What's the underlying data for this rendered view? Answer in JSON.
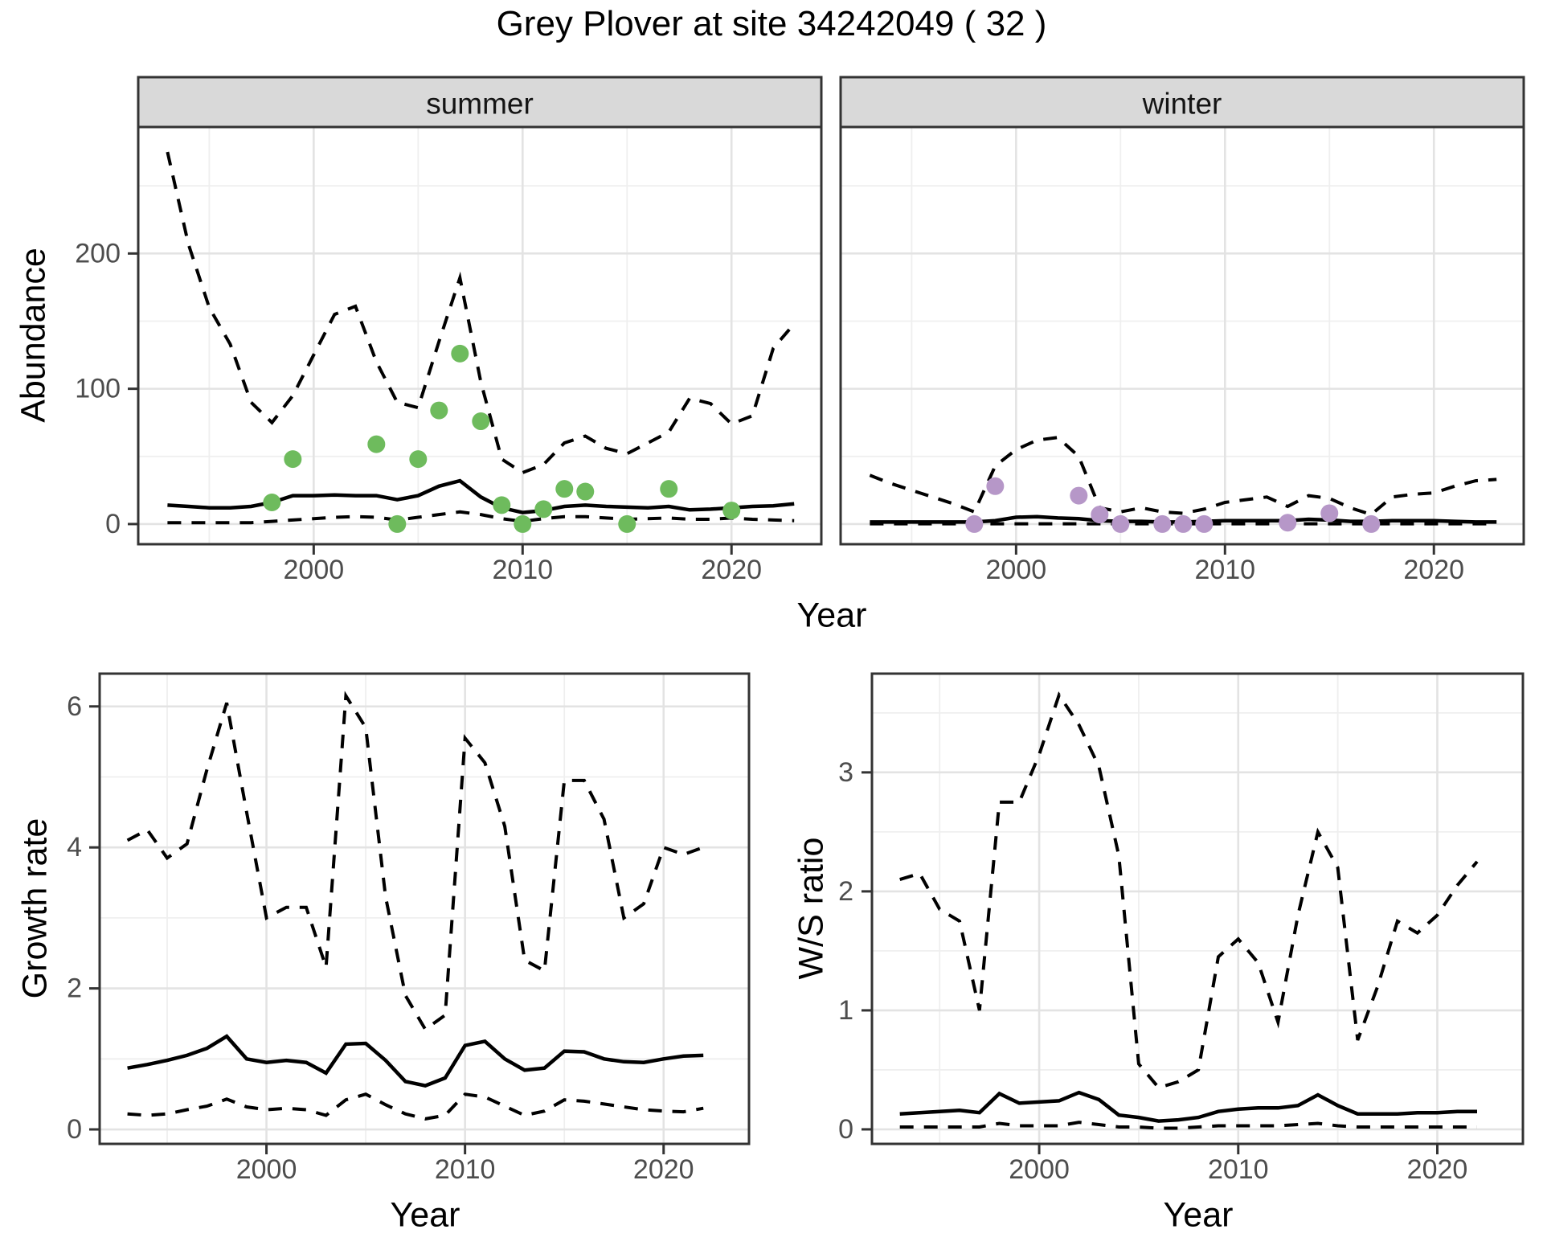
{
  "title": "Grey Plover at site 34242049 ( 32 )",
  "colors": {
    "summer_points": "#6EBB5D",
    "winter_points": "#B697C8",
    "line": "#000000",
    "strip_bg": "#D9D9D9",
    "panel_border": "#333333",
    "grid_major": "#E3E3E3",
    "grid_minor": "#EFEFEF",
    "tick_text": "#4D4D4D"
  },
  "axis_shared": {
    "x_title_top": "Year"
  },
  "chart_data": [
    {
      "type": "line",
      "facet": "summer",
      "xlabel": "Year",
      "ylabel": "Abundance",
      "x_ticks": [
        2000,
        2010,
        2020
      ],
      "x_minor": [
        1995,
        2005,
        2015
      ],
      "y_ticks": [
        0,
        100,
        200
      ],
      "y_minor": [
        50,
        150,
        250
      ],
      "xlim": [
        1991.6,
        2024.3
      ],
      "ylim": [
        -14.9,
        293.5
      ],
      "x": [
        1993,
        1994,
        1995,
        1996,
        1997,
        1998,
        1999,
        2000,
        2001,
        2002,
        2003,
        2004,
        2005,
        2006,
        2007,
        2008,
        2009,
        2010,
        2011,
        2012,
        2013,
        2014,
        2015,
        2016,
        2017,
        2018,
        2019,
        2020,
        2021,
        2022,
        2023
      ],
      "series": [
        {
          "name": "median",
          "style": "solid",
          "values": [
            14,
            13,
            12,
            12,
            13,
            16,
            21,
            21,
            21.5,
            21,
            21,
            18,
            21,
            28,
            32,
            20,
            12,
            8.5,
            10,
            13,
            14,
            13,
            12.5,
            12,
            13,
            10.5,
            11,
            12,
            13,
            13.5,
            15
          ]
        },
        {
          "name": "upper_ci",
          "style": "dashed",
          "values": [
            275,
            207,
            160,
            133,
            90,
            75,
            95,
            125,
            155,
            161,
            120,
            90,
            86,
            135,
            182,
            105,
            48,
            38,
            44,
            60,
            65,
            56,
            52,
            60,
            68,
            93,
            89,
            74,
            80,
            130,
            148
          ]
        },
        {
          "name": "lower_ci",
          "style": "dashed",
          "values": [
            1,
            1,
            1,
            1,
            1,
            2,
            3,
            4,
            5,
            5.5,
            5,
            3,
            5,
            7,
            9,
            7,
            4,
            2,
            4,
            5.5,
            5.5,
            4.5,
            3.5,
            4,
            4.5,
            3.5,
            3.5,
            4.5,
            3.5,
            3,
            2.5
          ]
        }
      ],
      "points": {
        "name": "observed_summer_counts",
        "color_key": "summer_points",
        "data": [
          [
            1998,
            16
          ],
          [
            1999,
            48
          ],
          [
            2003,
            59
          ],
          [
            2004,
            0
          ],
          [
            2005,
            48
          ],
          [
            2006,
            84
          ],
          [
            2007,
            126
          ],
          [
            2008,
            76
          ],
          [
            2009,
            14
          ],
          [
            2010,
            0
          ],
          [
            2011,
            11
          ],
          [
            2012,
            26
          ],
          [
            2013,
            24
          ],
          [
            2015,
            0
          ],
          [
            2017,
            26
          ],
          [
            2020,
            10
          ]
        ]
      }
    },
    {
      "type": "line",
      "facet": "winter",
      "xlabel": "Year",
      "ylabel": "Abundance",
      "x_ticks": [
        2000,
        2010,
        2020
      ],
      "x_minor": [
        1995,
        2005,
        2015
      ],
      "y_ticks": [
        0,
        100,
        200
      ],
      "y_minor": [
        50,
        150,
        250
      ],
      "xlim": [
        1991.6,
        2024.3
      ],
      "ylim": [
        -14.9,
        293.5
      ],
      "x": [
        1993,
        1994,
        1995,
        1996,
        1997,
        1998,
        1999,
        2000,
        2001,
        2002,
        2003,
        2004,
        2005,
        2006,
        2007,
        2008,
        2009,
        2010,
        2011,
        2012,
        2013,
        2014,
        2015,
        2016,
        2017,
        2018,
        2019,
        2020,
        2021,
        2022,
        2023
      ],
      "series": [
        {
          "name": "median",
          "style": "solid",
          "values": [
            1.5,
            1.5,
            1.5,
            1.5,
            1.5,
            1.5,
            2.5,
            5,
            5.5,
            4.5,
            4,
            2.5,
            2,
            2,
            1.5,
            1.5,
            2,
            2.5,
            2.5,
            2.5,
            2.5,
            3.5,
            3,
            2,
            2,
            2.5,
            2.5,
            2.5,
            2,
            1.5,
            1.5
          ]
        },
        {
          "name": "upper_ci",
          "style": "dashed",
          "values": [
            36,
            30,
            25,
            20,
            15,
            9,
            43,
            55,
            62,
            64,
            50,
            12,
            9,
            12,
            9,
            8,
            11,
            16,
            18,
            20,
            13,
            21,
            19,
            12,
            7,
            20,
            22,
            23,
            28,
            32,
            33
          ]
        },
        {
          "name": "lower_ci",
          "style": "dashed",
          "values": [
            0.2,
            0.2,
            0.2,
            0.2,
            0.2,
            0.2,
            0.2,
            0.2,
            0.2,
            0.2,
            0.2,
            0.2,
            0.2,
            0.2,
            0.2,
            0.2,
            0.2,
            0.2,
            0.2,
            0.2,
            0.2,
            0.2,
            0.2,
            0.2,
            0.2,
            0.2,
            0.2,
            0.2,
            0.2,
            0.2,
            0.2
          ]
        }
      ],
      "points": {
        "name": "observed_winter_counts",
        "color_key": "winter_points",
        "data": [
          [
            1998,
            0
          ],
          [
            1999,
            28
          ],
          [
            2003,
            21
          ],
          [
            2004,
            7
          ],
          [
            2005,
            0
          ],
          [
            2007,
            0
          ],
          [
            2008,
            0
          ],
          [
            2009,
            0
          ],
          [
            2013,
            1
          ],
          [
            2015,
            8
          ],
          [
            2017,
            0
          ]
        ]
      }
    },
    {
      "type": "line",
      "facet": null,
      "xlabel": "Year",
      "ylabel": "Growth rate",
      "x_ticks": [
        2000,
        2010,
        2020
      ],
      "x_minor": [
        1995,
        2005,
        2015
      ],
      "y_ticks": [
        0,
        2,
        4,
        6
      ],
      "y_minor": [
        1,
        3,
        5
      ],
      "xlim": [
        1991.6,
        2024.3
      ],
      "ylim": [
        -0.205,
        6.465
      ],
      "x": [
        1993,
        1994,
        1995,
        1996,
        1997,
        1998,
        1999,
        2000,
        2001,
        2002,
        2003,
        2004,
        2005,
        2006,
        2007,
        2008,
        2009,
        2010,
        2011,
        2012,
        2013,
        2014,
        2015,
        2016,
        2017,
        2018,
        2019,
        2020,
        2021,
        2022
      ],
      "series": [
        {
          "name": "median",
          "style": "solid",
          "values": [
            0.87,
            0.92,
            0.98,
            1.05,
            1.15,
            1.32,
            1.0,
            0.95,
            0.98,
            0.95,
            0.8,
            1.21,
            1.22,
            0.98,
            0.68,
            0.62,
            0.73,
            1.19,
            1.25,
            1.0,
            0.84,
            0.87,
            1.11,
            1.1,
            1.0,
            0.96,
            0.95,
            1.0,
            1.04,
            1.05
          ]
        },
        {
          "name": "upper_ci",
          "style": "dashed",
          "values": [
            4.1,
            4.25,
            3.85,
            4.05,
            5.1,
            6.05,
            4.5,
            3.0,
            3.15,
            3.15,
            2.3,
            6.15,
            5.7,
            3.3,
            1.9,
            1.42,
            1.62,
            5.55,
            5.2,
            4.3,
            2.4,
            2.25,
            4.95,
            4.95,
            4.4,
            3.0,
            3.2,
            4.0,
            3.9,
            4.0
          ]
        },
        {
          "name": "lower_ci",
          "style": "dashed",
          "values": [
            0.22,
            0.2,
            0.22,
            0.28,
            0.33,
            0.43,
            0.32,
            0.28,
            0.3,
            0.28,
            0.2,
            0.42,
            0.5,
            0.35,
            0.22,
            0.15,
            0.2,
            0.5,
            0.46,
            0.33,
            0.2,
            0.26,
            0.42,
            0.4,
            0.36,
            0.32,
            0.28,
            0.26,
            0.25,
            0.3
          ]
        }
      ],
      "points": null
    },
    {
      "type": "line",
      "facet": null,
      "xlabel": "Year",
      "ylabel": "W/S ratio",
      "x_ticks": [
        2000,
        2010,
        2020
      ],
      "x_minor": [
        1995,
        2005,
        2015
      ],
      "y_ticks": [
        0,
        1,
        2,
        3
      ],
      "y_minor": [
        0.5,
        1.5,
        2.5,
        3.5
      ],
      "xlim": [
        1991.6,
        2024.3
      ],
      "ylim": [
        -0.122,
        3.83
      ],
      "x": [
        1993,
        1994,
        1995,
        1996,
        1997,
        1998,
        1999,
        2000,
        2001,
        2002,
        2003,
        2004,
        2005,
        2006,
        2007,
        2008,
        2009,
        2010,
        2011,
        2012,
        2013,
        2014,
        2015,
        2016,
        2017,
        2018,
        2019,
        2020,
        2021,
        2022
      ],
      "series": [
        {
          "name": "median",
          "style": "solid",
          "values": [
            0.13,
            0.14,
            0.15,
            0.16,
            0.14,
            0.3,
            0.22,
            0.23,
            0.24,
            0.31,
            0.25,
            0.12,
            0.1,
            0.07,
            0.08,
            0.1,
            0.15,
            0.17,
            0.18,
            0.18,
            0.2,
            0.29,
            0.2,
            0.13,
            0.13,
            0.13,
            0.14,
            0.14,
            0.15,
            0.15
          ]
        },
        {
          "name": "upper_ci",
          "style": "dashed",
          "values": [
            2.1,
            2.15,
            1.85,
            1.75,
            1.0,
            2.75,
            2.75,
            3.15,
            3.65,
            3.4,
            3.05,
            2.3,
            0.55,
            0.35,
            0.4,
            0.5,
            1.45,
            1.6,
            1.4,
            0.9,
            1.8,
            2.5,
            2.2,
            0.75,
            1.2,
            1.75,
            1.65,
            1.8,
            2.05,
            2.25
          ]
        },
        {
          "name": "lower_ci",
          "style": "dashed",
          "values": [
            0.02,
            0.02,
            0.02,
            0.02,
            0.02,
            0.05,
            0.03,
            0.03,
            0.03,
            0.06,
            0.04,
            0.02,
            0.02,
            0.01,
            0.01,
            0.02,
            0.03,
            0.03,
            0.03,
            0.03,
            0.04,
            0.05,
            0.03,
            0.02,
            0.02,
            0.02,
            0.02,
            0.02,
            0.02,
            0.02
          ]
        }
      ],
      "points": null
    }
  ]
}
